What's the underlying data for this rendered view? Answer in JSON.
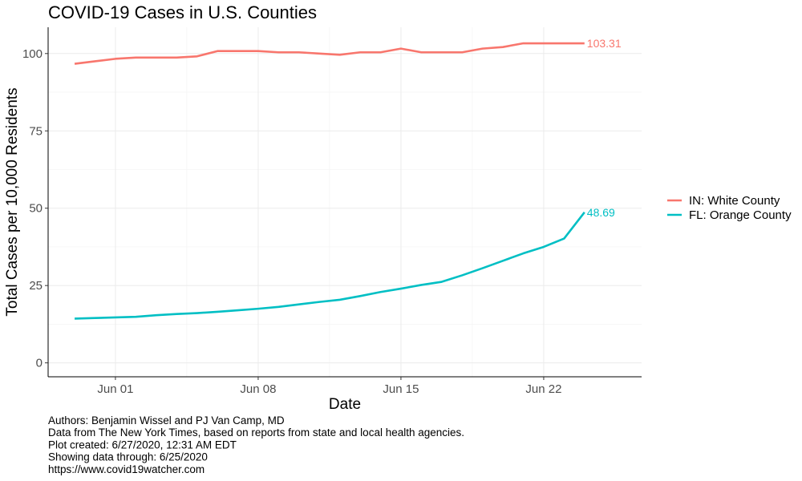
{
  "chart_data": {
    "type": "line",
    "title": "COVID-19 Cases in U.S. Counties",
    "xlabel": "Date",
    "ylabel": "Total Cases per 10,000 Residents",
    "x": [
      0,
      1,
      2,
      3,
      4,
      5,
      6,
      7,
      8,
      9,
      10,
      11,
      12,
      13,
      14,
      15,
      16,
      17,
      18,
      19,
      20,
      21,
      22,
      23,
      24,
      25
    ],
    "x_dates": [
      "5/30",
      "5/31",
      "6/1",
      "6/2",
      "6/3",
      "6/4",
      "6/5",
      "6/6",
      "6/7",
      "6/8",
      "6/9",
      "6/10",
      "6/11",
      "6/12",
      "6/13",
      "6/14",
      "6/15",
      "6/16",
      "6/17",
      "6/18",
      "6/19",
      "6/20",
      "6/21",
      "6/22",
      "6/23",
      "6/24"
    ],
    "xlim": [
      -1.3,
      27.8
    ],
    "ylim": [
      -4.5,
      108.5
    ],
    "x_ticks": [
      {
        "value": 2,
        "label": "Jun 01"
      },
      {
        "value": 9,
        "label": "Jun 08"
      },
      {
        "value": 16,
        "label": "Jun 15"
      },
      {
        "value": 23,
        "label": "Jun 22"
      }
    ],
    "x_minor_ticks": [
      5.5,
      12.5,
      19.5
    ],
    "y_ticks": [
      {
        "value": 0,
        "label": "0"
      },
      {
        "value": 25,
        "label": "25"
      },
      {
        "value": 50,
        "label": "50"
      },
      {
        "value": 75,
        "label": "75"
      },
      {
        "value": 100,
        "label": "100"
      }
    ],
    "y_minor_ticks": [
      12.5,
      37.5,
      62.5,
      87.5
    ],
    "grid": true,
    "legend_position": "right",
    "series": [
      {
        "name": "IN: White County",
        "color": "#f8766d",
        "end_label": "103.31",
        "values": [
          96.7,
          97.5,
          98.3,
          98.7,
          98.7,
          98.7,
          99.1,
          100.8,
          100.8,
          100.8,
          100.4,
          100.4,
          100.0,
          99.6,
          100.4,
          100.4,
          101.6,
          100.4,
          100.4,
          100.4,
          101.6,
          102.1,
          103.31,
          103.31,
          103.31,
          103.31
        ]
      },
      {
        "name": "FL: Orange County",
        "color": "#00bfc4",
        "end_label": "48.69",
        "values": [
          14.3,
          14.5,
          14.7,
          14.9,
          15.4,
          15.8,
          16.1,
          16.5,
          17.0,
          17.5,
          18.1,
          18.9,
          19.7,
          20.4,
          21.6,
          22.9,
          24.0,
          25.2,
          26.2,
          28.3,
          30.6,
          33.0,
          35.4,
          37.5,
          40.2,
          48.69
        ]
      }
    ],
    "caption": [
      "Authors: Benjamin Wissel and PJ Van Camp, MD",
      "Data from The New York Times, based on reports from state and local health agencies.",
      "Plot created: 6/27/2020, 12:31 AM EDT",
      "Showing data through: 6/25/2020",
      "https://www.covid19watcher.com"
    ]
  }
}
